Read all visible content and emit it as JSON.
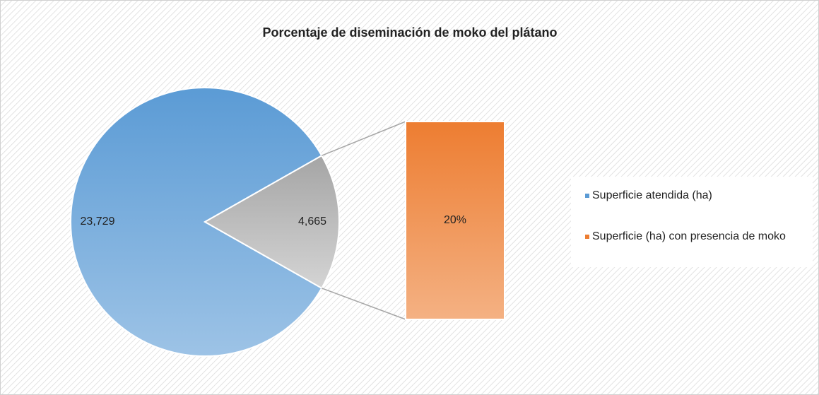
{
  "chart_data": {
    "type": "pie-of-bar",
    "title": "Porcentaje de diseminación de moko del plátano",
    "categories": [
      "Superficie atendida (ha)",
      null
    ],
    "values": [
      23729,
      4665
    ],
    "value_labels": [
      "23,729",
      "4,665"
    ],
    "colors": [
      "#5b9bd5",
      "#a5a5a5"
    ],
    "bar": {
      "name": "Superficie (ha) con presencia de moko",
      "value": 20,
      "value_label": "20%",
      "color": "#ed7d31"
    },
    "legend": "right"
  }
}
